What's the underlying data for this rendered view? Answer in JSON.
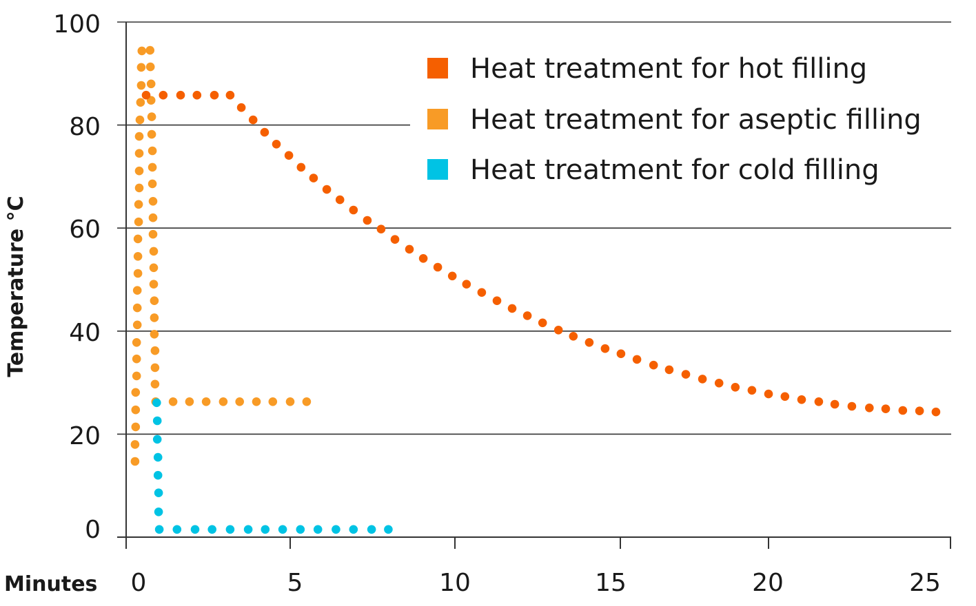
{
  "chart_data": {
    "type": "scatter",
    "title": "",
    "xlabel": "Minutes",
    "ylabel": "Temperature °C",
    "xlim": [
      0,
      25
    ],
    "ylim": [
      0,
      100
    ],
    "x_ticks": [
      "0",
      "5",
      "10",
      "15",
      "20",
      "25"
    ],
    "y_ticks": [
      "0",
      "20",
      "40",
      "60",
      "80",
      "100"
    ],
    "grid": "horizontal",
    "legend_position": "top-right",
    "series": [
      {
        "name": "Heat treatment for hot filling",
        "color": "#F55F00",
        "points": [
          [
            0.61,
            85.8
          ],
          [
            1.13,
            85.8
          ],
          [
            1.66,
            85.8
          ],
          [
            2.16,
            85.8
          ],
          [
            2.69,
            85.8
          ],
          [
            3.17,
            85.8
          ],
          [
            3.51,
            83.4
          ],
          [
            3.87,
            81.0
          ],
          [
            4.22,
            78.6
          ],
          [
            4.58,
            76.3
          ],
          [
            4.96,
            74.1
          ],
          [
            5.33,
            71.8
          ],
          [
            5.71,
            69.7
          ],
          [
            6.11,
            67.5
          ],
          [
            6.51,
            65.5
          ],
          [
            6.92,
            63.5
          ],
          [
            7.34,
            61.5
          ],
          [
            7.76,
            59.8
          ],
          [
            8.18,
            57.8
          ],
          [
            8.62,
            55.9
          ],
          [
            9.04,
            54.1
          ],
          [
            9.48,
            52.4
          ],
          [
            9.92,
            50.7
          ],
          [
            10.35,
            49.1
          ],
          [
            10.81,
            47.5
          ],
          [
            11.27,
            45.9
          ],
          [
            11.73,
            44.4
          ],
          [
            12.19,
            43.0
          ],
          [
            12.65,
            41.6
          ],
          [
            13.13,
            40.2
          ],
          [
            13.58,
            39.0
          ],
          [
            14.06,
            37.8
          ],
          [
            14.54,
            36.6
          ],
          [
            15.02,
            35.6
          ],
          [
            15.56,
            34.5
          ],
          [
            16.12,
            33.4
          ],
          [
            16.65,
            32.5
          ],
          [
            17.21,
            31.6
          ],
          [
            17.77,
            30.7
          ],
          [
            18.33,
            29.9
          ],
          [
            18.88,
            29.1
          ],
          [
            19.44,
            28.5
          ],
          [
            20.0,
            27.8
          ],
          [
            20.45,
            27.3
          ],
          [
            20.91,
            26.7
          ],
          [
            21.38,
            26.3
          ],
          [
            21.82,
            25.8
          ],
          [
            22.29,
            25.4
          ],
          [
            22.77,
            25.1
          ],
          [
            23.22,
            24.9
          ],
          [
            23.69,
            24.6
          ],
          [
            24.15,
            24.5
          ],
          [
            24.6,
            24.3
          ]
        ]
      },
      {
        "name": "Heat treatment for aseptic filling",
        "color": "#F89B26",
        "points": [
          [
            0.27,
            14.7
          ],
          [
            0.27,
            18.0
          ],
          [
            0.29,
            21.4
          ],
          [
            0.29,
            24.7
          ],
          [
            0.29,
            28.1
          ],
          [
            0.32,
            31.3
          ],
          [
            0.32,
            34.6
          ],
          [
            0.32,
            37.8
          ],
          [
            0.34,
            41.2
          ],
          [
            0.34,
            44.5
          ],
          [
            0.34,
            47.9
          ],
          [
            0.36,
            51.2
          ],
          [
            0.36,
            54.5
          ],
          [
            0.36,
            57.9
          ],
          [
            0.38,
            61.2
          ],
          [
            0.38,
            64.6
          ],
          [
            0.4,
            67.8
          ],
          [
            0.4,
            71.1
          ],
          [
            0.4,
            74.5
          ],
          [
            0.4,
            77.8
          ],
          [
            0.42,
            81.0
          ],
          [
            0.44,
            84.4
          ],
          [
            0.46,
            87.7
          ],
          [
            0.46,
            91.2
          ],
          [
            0.48,
            94.4
          ],
          [
            0.73,
            94.5
          ],
          [
            0.74,
            91.3
          ],
          [
            0.76,
            88.0
          ],
          [
            0.76,
            84.8
          ],
          [
            0.78,
            81.6
          ],
          [
            0.78,
            78.2
          ],
          [
            0.8,
            75.0
          ],
          [
            0.8,
            71.8
          ],
          [
            0.8,
            68.6
          ],
          [
            0.82,
            65.2
          ],
          [
            0.82,
            62.0
          ],
          [
            0.82,
            58.8
          ],
          [
            0.84,
            55.5
          ],
          [
            0.84,
            52.3
          ],
          [
            0.84,
            49.1
          ],
          [
            0.86,
            45.9
          ],
          [
            0.86,
            42.6
          ],
          [
            0.86,
            39.4
          ],
          [
            0.88,
            36.2
          ],
          [
            0.88,
            32.9
          ],
          [
            0.88,
            29.7
          ],
          [
            0.9,
            26.3
          ],
          [
            1.43,
            26.3
          ],
          [
            1.93,
            26.3
          ],
          [
            2.44,
            26.3
          ],
          [
            2.96,
            26.3
          ],
          [
            3.46,
            26.3
          ],
          [
            3.97,
            26.3
          ],
          [
            4.47,
            26.3
          ],
          [
            5.0,
            26.3
          ],
          [
            5.5,
            26.3
          ]
        ]
      },
      {
        "name": "Heat treatment for cold filling",
        "color": "#00C3E4",
        "points": [
          [
            0.93,
            26.1
          ],
          [
            0.95,
            22.6
          ],
          [
            0.95,
            19.0
          ],
          [
            0.97,
            15.5
          ],
          [
            0.97,
            12.0
          ],
          [
            0.99,
            8.6
          ],
          [
            0.99,
            4.9
          ],
          [
            1.01,
            1.5
          ],
          [
            1.55,
            1.5
          ],
          [
            2.1,
            1.5
          ],
          [
            2.62,
            1.5
          ],
          [
            3.17,
            1.5
          ],
          [
            3.72,
            1.5
          ],
          [
            4.24,
            1.5
          ],
          [
            4.77,
            1.5
          ],
          [
            5.31,
            1.5
          ],
          [
            5.84,
            1.5
          ],
          [
            6.39,
            1.5
          ],
          [
            6.92,
            1.5
          ],
          [
            7.47,
            1.5
          ],
          [
            7.98,
            1.5
          ]
        ]
      }
    ]
  }
}
